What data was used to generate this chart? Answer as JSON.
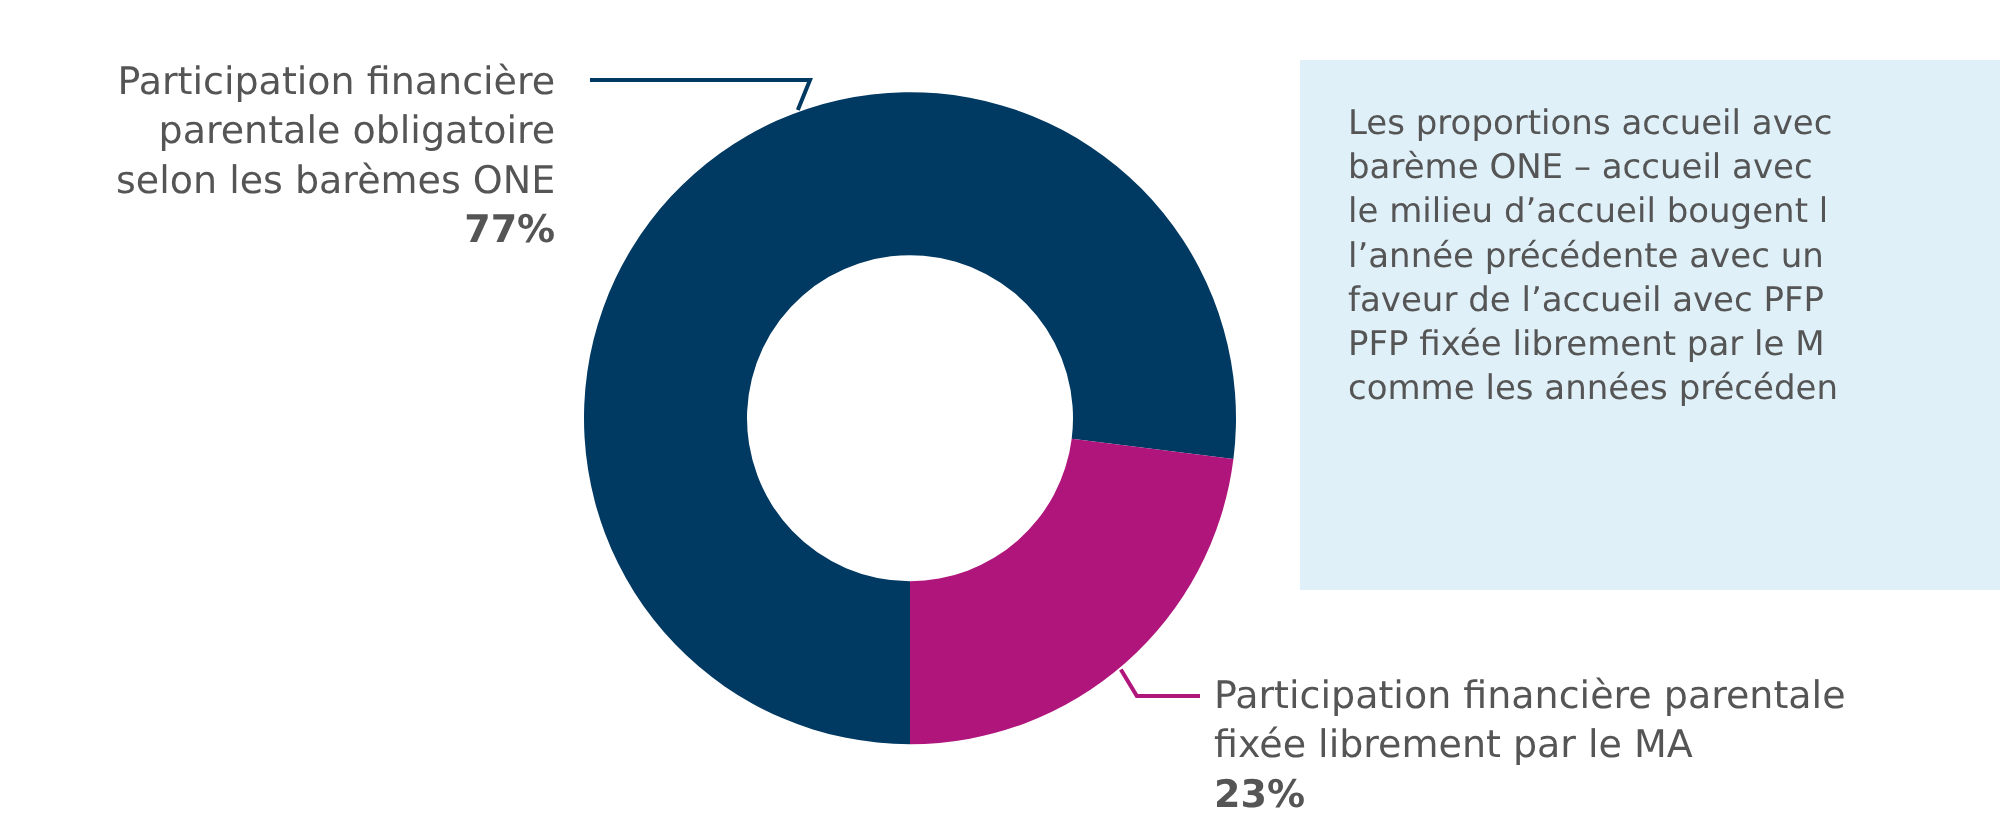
{
  "chart_data": {
    "type": "donut",
    "categories": [
      "Participation financière\nparentale obligatoire\nselon les barèmes ONE",
      "Participation financière parentale\nfixée librement par le MA"
    ],
    "values": [
      77,
      23
    ],
    "colors": [
      "#003962",
      "#b0157c"
    ],
    "value_labels": [
      "77%",
      "23%"
    ],
    "legend": false,
    "annotations": [
      "Les proportions accueil avec\nbarème ONE – accueil avec\nle milieu d’accueil bougent l\nl’année précédente avec un\nfaveur de l’accueil avec PFP\nPFP fixée librement par le M\ncomme les années précéden"
    ]
  }
}
